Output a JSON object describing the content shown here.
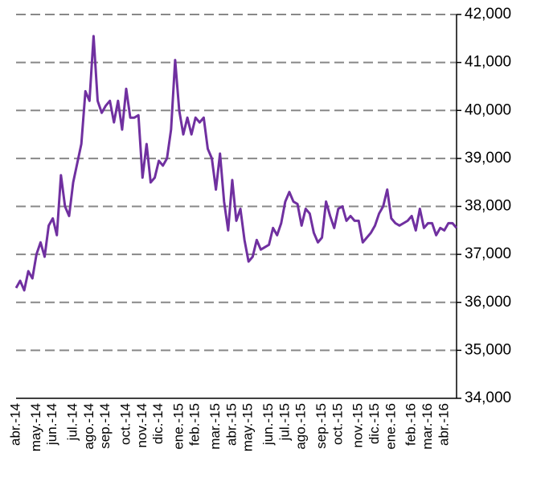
{
  "chart_data": {
    "type": "line",
    "categories": [
      "abr.-14",
      null,
      null,
      null,
      null,
      "may.-14",
      null,
      null,
      null,
      "jun.-14",
      null,
      null,
      null,
      null,
      "jul.-14",
      null,
      null,
      null,
      "ago.-14",
      null,
      null,
      null,
      "sep.-14",
      null,
      null,
      null,
      null,
      "oct.-14",
      null,
      null,
      null,
      "nov.-14",
      null,
      null,
      null,
      "dic.-14",
      null,
      null,
      null,
      null,
      "ene.-15",
      null,
      null,
      null,
      "feb.-15",
      null,
      null,
      null,
      null,
      "mar.-15",
      null,
      null,
      null,
      "abr.-15",
      null,
      null,
      null,
      "may.-15",
      null,
      null,
      null,
      null,
      "jun.-15",
      null,
      null,
      null,
      "jul.-15",
      null,
      null,
      null,
      "ago.-15",
      null,
      null,
      null,
      null,
      "sep.-15",
      null,
      null,
      null,
      "oct.-15",
      null,
      null,
      null,
      null,
      "nov.-15",
      null,
      null,
      null,
      "dic.-15",
      null,
      null,
      null,
      "ene.-16",
      null,
      null,
      null,
      null,
      "feb.-16",
      null,
      null,
      null,
      "mar.-16",
      null,
      null,
      null,
      "abr.-16",
      null,
      null,
      null
    ],
    "series": [
      {
        "color": "#7030a0",
        "values": [
          36300,
          36450,
          36250,
          36650,
          36500,
          37000,
          37250,
          36950,
          37600,
          37750,
          37400,
          38650,
          38000,
          37800,
          38500,
          38900,
          39300,
          40400,
          40200,
          41550,
          40200,
          39950,
          40100,
          40200,
          39750,
          40200,
          39600,
          40450,
          39850,
          39850,
          39900,
          38600,
          39300,
          38500,
          38600,
          38950,
          38850,
          39000,
          39600,
          41050,
          40000,
          39500,
          39850,
          39500,
          39850,
          39750,
          39850,
          39200,
          39000,
          38350,
          39100,
          38100,
          37500,
          38550,
          37700,
          37950,
          37300,
          36850,
          36950,
          37300,
          37100,
          37150,
          37200,
          37550,
          37400,
          37650,
          38100,
          38300,
          38100,
          38050,
          37600,
          37950,
          37850,
          37450,
          37250,
          37350,
          38100,
          37800,
          37550,
          37950,
          38000,
          37700,
          37800,
          37700,
          37700,
          37250,
          37350,
          37450,
          37600,
          37850,
          38000,
          38350,
          37750,
          37650,
          37600,
          37650,
          37700,
          37800,
          37500,
          37950,
          37550,
          37650,
          37650,
          37400,
          37550,
          37500,
          37650,
          37650,
          37550
        ]
      }
    ],
    "ylim": [
      34000,
      42000
    ],
    "yticks": [
      {
        "value": 34000,
        "label": "34,000"
      },
      {
        "value": 35000,
        "label": "35,000"
      },
      {
        "value": 36000,
        "label": "36,000"
      },
      {
        "value": 37000,
        "label": "37,000"
      },
      {
        "value": 38000,
        "label": "38,000"
      },
      {
        "value": 39000,
        "label": "39,000"
      },
      {
        "value": 40000,
        "label": "40,000"
      },
      {
        "value": 41000,
        "label": "41,000"
      },
      {
        "value": 42000,
        "label": "42,000"
      }
    ],
    "grid": true
  }
}
